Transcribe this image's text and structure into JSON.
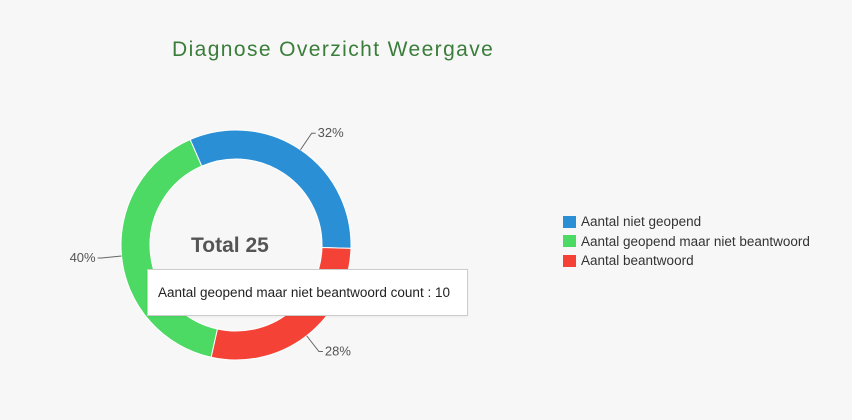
{
  "chart_data": {
    "type": "pie",
    "title": "Diagnose Overzicht Weergave",
    "center_text": "Total 25",
    "total": 25,
    "slices": [
      {
        "name": "Aantal niet geopend",
        "value": 8,
        "label": "32%",
        "color": "#2a8fd4"
      },
      {
        "name": "Aantal beantwoord",
        "value": 7,
        "label": "28%",
        "color": "#f44336"
      },
      {
        "name": "Aantal geopend maar niet beantwoord",
        "value": 10,
        "label": "40%",
        "color": "#4cd964"
      }
    ],
    "legend": [
      {
        "name": "Aantal niet geopend",
        "color": "#2a8fd4"
      },
      {
        "name": "Aantal geopend maar niet beantwoord",
        "color": "#4cd964"
      },
      {
        "name": "Aantal beantwoord",
        "color": "#f44336"
      }
    ],
    "legend_position": "right",
    "tooltip": "Aantal geopend maar niet beantwoord count : 10"
  }
}
